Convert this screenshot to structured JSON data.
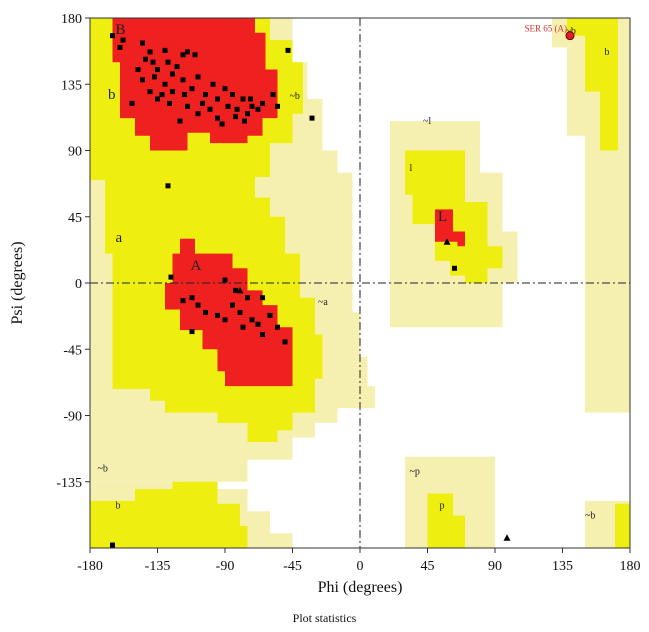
{
  "chart_data": {
    "type": "scatter",
    "title": "",
    "xlabel": "Phi (degrees)",
    "ylabel": "Psi (degrees)",
    "xlim": [
      -180,
      180
    ],
    "ylim": [
      -180,
      180
    ],
    "x_ticks": [
      "-180",
      "-135",
      "-90",
      "-45",
      "0",
      "45",
      "90",
      "135",
      "180"
    ],
    "y_ticks": [
      "180",
      "135",
      "90",
      "45",
      "0",
      "-45",
      "-90",
      "-135"
    ],
    "grid": false,
    "reference_lines": [
      "phi = 0",
      "psi = 0"
    ],
    "region_colors": {
      "most_favoured": "#ee2020",
      "additional_allowed": "#eeee10",
      "generously_allowed": "#f5f0b0",
      "disallowed": "#ffffff"
    },
    "region_labels": [
      {
        "text": "B",
        "phi": -163,
        "psi": 169,
        "size": "large"
      },
      {
        "text": "b",
        "phi": -168,
        "psi": 125,
        "size": "large"
      },
      {
        "text": "~b",
        "phi": -47,
        "psi": 125,
        "size": "small"
      },
      {
        "text": "a",
        "phi": -163,
        "psi": 28,
        "size": "large"
      },
      {
        "text": "A",
        "phi": -113,
        "psi": 9,
        "size": "large"
      },
      {
        "text": "~a",
        "phi": -28,
        "psi": -15,
        "size": "small"
      },
      {
        "text": "~l",
        "phi": 42,
        "psi": 108,
        "size": "small"
      },
      {
        "text": "l",
        "phi": 33,
        "psi": 76,
        "size": "small"
      },
      {
        "text": "L",
        "phi": 52,
        "psi": 42,
        "size": "large"
      },
      {
        "text": "~b",
        "phi": -175,
        "psi": -128,
        "size": "small"
      },
      {
        "text": "b",
        "phi": -163,
        "psi": -153,
        "size": "small"
      },
      {
        "text": "~p",
        "phi": 33,
        "psi": -130,
        "size": "small"
      },
      {
        "text": "p",
        "phi": 53,
        "psi": -153,
        "size": "small"
      },
      {
        "text": "~b",
        "phi": 137,
        "psi": 169,
        "size": "small"
      },
      {
        "text": "b",
        "phi": 163,
        "psi": 155,
        "size": "small"
      },
      {
        "text": "~b",
        "phi": 150,
        "psi": -160,
        "size": "small"
      }
    ],
    "annotations": [
      {
        "text": "SER 65 (A)",
        "phi": 140,
        "psi": 168
      }
    ],
    "series": [
      {
        "marker": "square",
        "points": [
          [
            -165,
            168
          ],
          [
            -158,
            165
          ],
          [
            -160,
            160
          ],
          [
            -145,
            163
          ],
          [
            -140,
            157
          ],
          [
            -138,
            150
          ],
          [
            -135,
            145
          ],
          [
            -130,
            158
          ],
          [
            -128,
            150
          ],
          [
            -125,
            142
          ],
          [
            -122,
            147
          ],
          [
            -118,
            155
          ],
          [
            -115,
            157
          ],
          [
            -110,
            155
          ],
          [
            -145,
            138
          ],
          [
            -140,
            130
          ],
          [
            -135,
            125
          ],
          [
            -130,
            135
          ],
          [
            -125,
            130
          ],
          [
            -118,
            138
          ],
          [
            -112,
            132
          ],
          [
            -108,
            140
          ],
          [
            -103,
            128
          ],
          [
            -98,
            135
          ],
          [
            -95,
            125
          ],
          [
            -90,
            132
          ],
          [
            -88,
            120
          ],
          [
            -85,
            128
          ],
          [
            -82,
            118
          ],
          [
            -78,
            125
          ],
          [
            -75,
            115
          ],
          [
            -72,
            120
          ],
          [
            -68,
            118
          ],
          [
            -65,
            122
          ],
          [
            -95,
            112
          ],
          [
            -100,
            118
          ],
          [
            -105,
            122
          ],
          [
            -115,
            120
          ],
          [
            -120,
            110
          ],
          [
            -152,
            122
          ],
          [
            -148,
            145
          ],
          [
            -143,
            152
          ],
          [
            -137,
            140
          ],
          [
            -132,
            128
          ],
          [
            -127,
            122
          ],
          [
            -117,
            128
          ],
          [
            -108,
            115
          ],
          [
            -92,
            108
          ],
          [
            -83,
            113
          ],
          [
            -77,
            110
          ],
          [
            -73,
            125
          ],
          [
            -58,
            128
          ],
          [
            -55,
            120
          ],
          [
            -48,
            158
          ],
          [
            -32,
            112
          ],
          [
            -128,
            66
          ],
          [
            -126,
            4
          ],
          [
            -118,
            -12
          ],
          [
            -112,
            -10
          ],
          [
            -108,
            -15
          ],
          [
            -103,
            -20
          ],
          [
            -95,
            -22
          ],
          [
            -90,
            2
          ],
          [
            -85,
            -15
          ],
          [
            -80,
            -20
          ],
          [
            -75,
            -10
          ],
          [
            -72,
            -25
          ],
          [
            -68,
            -28
          ],
          [
            -65,
            -35
          ],
          [
            -60,
            -22
          ],
          [
            -55,
            -30
          ],
          [
            -50,
            -40
          ],
          [
            -112,
            -33
          ],
          [
            -90,
            -25
          ],
          [
            -78,
            -30
          ],
          [
            -65,
            -10
          ],
          [
            -83,
            -5
          ],
          [
            63,
            10
          ],
          [
            -165,
            -178
          ]
        ]
      },
      {
        "marker": "triangle",
        "points": [
          [
            58,
            28
          ],
          [
            98,
            -173
          ],
          [
            -80,
            -5
          ]
        ]
      },
      {
        "marker": "highlight",
        "points": [
          [
            140,
            168
          ]
        ]
      }
    ]
  },
  "footer": {
    "text": "Plot statistics"
  }
}
